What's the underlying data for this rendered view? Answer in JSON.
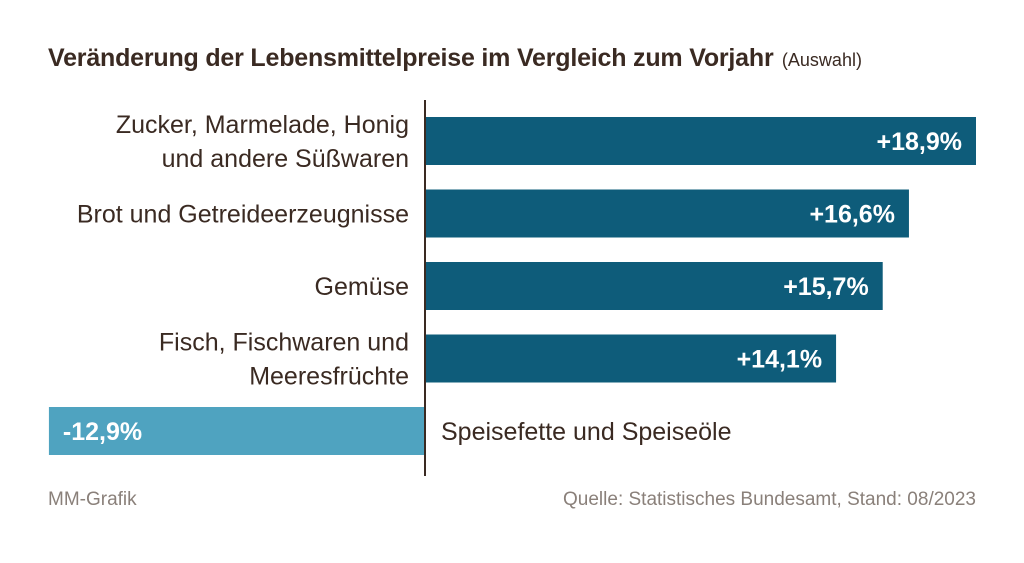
{
  "chart_data": {
    "type": "bar",
    "orientation": "horizontal",
    "title": "Veränderung der Lebensmittelpreise im Vergleich zum Vorjahr",
    "subtitle": "(Auswahl)",
    "categories": [
      [
        "Zucker, Marmelade, Honig",
        "und andere Süßwaren"
      ],
      [
        "Brot und Getreideerzeugnisse"
      ],
      [
        "Gemüse"
      ],
      [
        "Fisch, Fischwaren und",
        "Meeresfrüchte"
      ],
      [
        "Speisefette und Speiseöle"
      ]
    ],
    "values": [
      18.9,
      16.6,
      15.7,
      14.1,
      -12.9
    ],
    "value_labels": [
      "+18,9%",
      "+16,6%",
      "+15,7%",
      "+14,1%",
      "-12,9%"
    ],
    "xlim": [
      -12.9,
      18.9
    ],
    "colors": {
      "positive": "#0e5c7a",
      "negative": "#4fa3c0",
      "axis": "#3a2a22"
    }
  },
  "footer": {
    "left": "MM-Grafik",
    "right": "Quelle: Statistisches Bundesamt, Stand: 08/2023"
  }
}
